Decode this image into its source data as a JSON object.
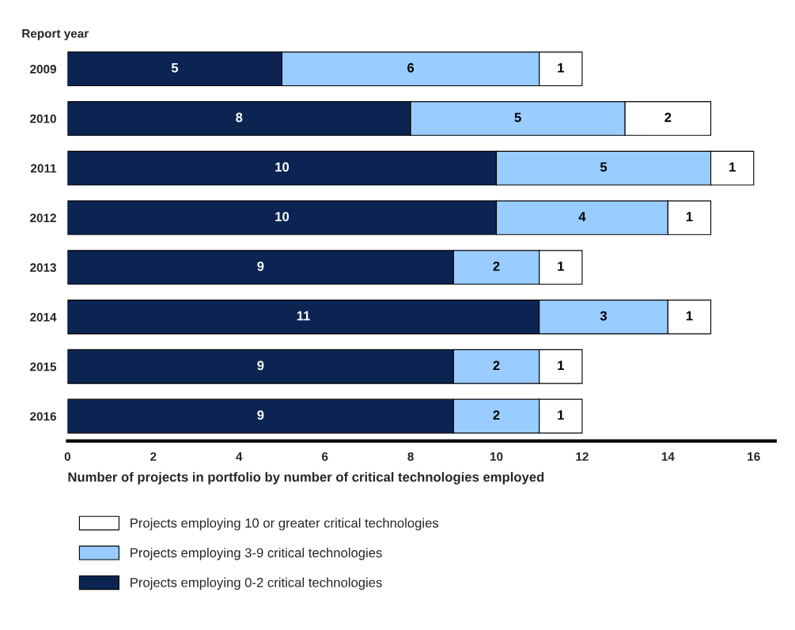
{
  "chart_data": {
    "type": "bar",
    "orientation": "horizontal",
    "stacked": true,
    "ylabel": "Report year",
    "xlabel": "Number of projects in portfolio by number of critical technologies employed",
    "categories": [
      "2009",
      "2010",
      "2011",
      "2012",
      "2013",
      "2014",
      "2015",
      "2016"
    ],
    "series": [
      {
        "name": "Projects employing 0-2 critical technologies",
        "color": "#0b2452",
        "values": [
          5,
          8,
          10,
          10,
          9,
          11,
          9,
          9
        ]
      },
      {
        "name": "Projects employing 3-9 critical technologies",
        "color": "#99ccff",
        "values": [
          6,
          5,
          5,
          4,
          2,
          3,
          2,
          2
        ]
      },
      {
        "name": "Projects employing 10 or greater critical technologies",
        "color": "#ffffff",
        "values": [
          1,
          2,
          1,
          1,
          1,
          1,
          1,
          1
        ]
      }
    ],
    "xlim": [
      0,
      16.5
    ],
    "xticks": [
      0,
      2,
      4,
      6,
      8,
      10,
      12,
      14,
      16
    ],
    "data_labels": true,
    "grid": false,
    "legend": "bottom"
  }
}
